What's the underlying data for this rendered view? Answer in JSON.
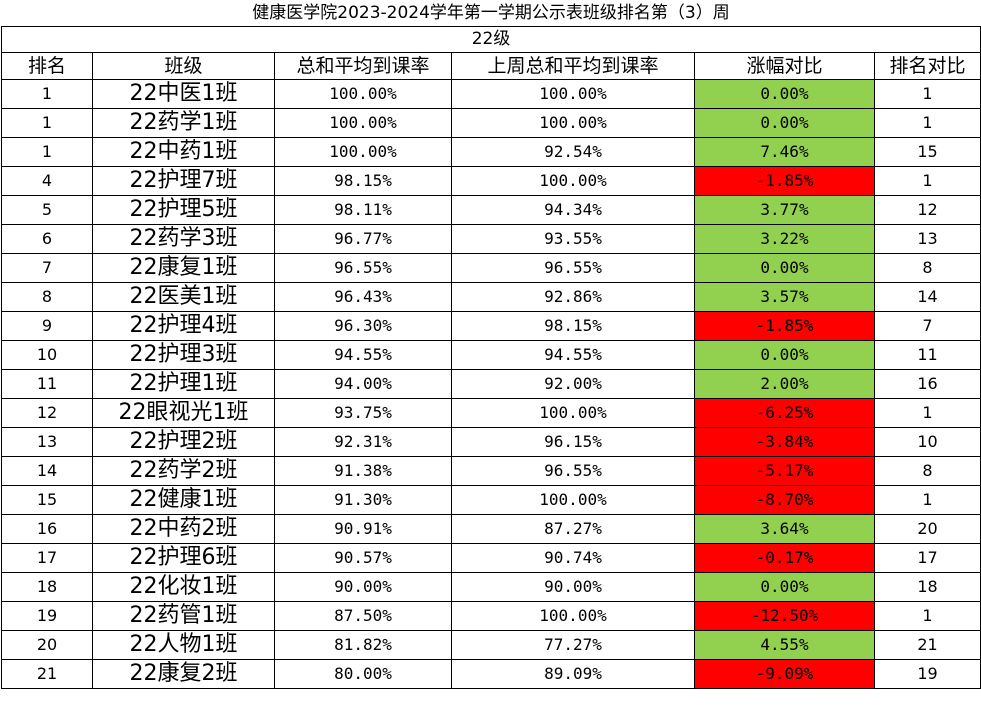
{
  "title": "健康医学院2023-2024学年第一学期公示表班级排名第（3）周",
  "grade": "22级",
  "headers": [
    "排名",
    "班级",
    "总和平均到课率",
    "上周总和平均到课率",
    "涨幅对比",
    "排名对比"
  ],
  "colors": {
    "increase": "#92d050",
    "decrease": "#ff0000"
  },
  "rows": [
    {
      "rank": "1",
      "class": "22中医1班",
      "rate": "100.00%",
      "last": "100.00%",
      "change": "0.00%",
      "trend": "up",
      "prev_rank": "1"
    },
    {
      "rank": "1",
      "class": "22药学1班",
      "rate": "100.00%",
      "last": "100.00%",
      "change": "0.00%",
      "trend": "up",
      "prev_rank": "1"
    },
    {
      "rank": "1",
      "class": "22中药1班",
      "rate": "100.00%",
      "last": "92.54%",
      "change": "7.46%",
      "trend": "up",
      "prev_rank": "15"
    },
    {
      "rank": "4",
      "class": "22护理7班",
      "rate": "98.15%",
      "last": "100.00%",
      "change": "-1.85%",
      "trend": "down",
      "prev_rank": "1"
    },
    {
      "rank": "5",
      "class": "22护理5班",
      "rate": "98.11%",
      "last": "94.34%",
      "change": "3.77%",
      "trend": "up",
      "prev_rank": "12"
    },
    {
      "rank": "6",
      "class": "22药学3班",
      "rate": "96.77%",
      "last": "93.55%",
      "change": "3.22%",
      "trend": "up",
      "prev_rank": "13"
    },
    {
      "rank": "7",
      "class": "22康复1班",
      "rate": "96.55%",
      "last": "96.55%",
      "change": "0.00%",
      "trend": "up",
      "prev_rank": "8"
    },
    {
      "rank": "8",
      "class": "22医美1班",
      "rate": "96.43%",
      "last": "92.86%",
      "change": "3.57%",
      "trend": "up",
      "prev_rank": "14"
    },
    {
      "rank": "9",
      "class": "22护理4班",
      "rate": "96.30%",
      "last": "98.15%",
      "change": "-1.85%",
      "trend": "down",
      "prev_rank": "7"
    },
    {
      "rank": "10",
      "class": "22护理3班",
      "rate": "94.55%",
      "last": "94.55%",
      "change": "0.00%",
      "trend": "up",
      "prev_rank": "11"
    },
    {
      "rank": "11",
      "class": "22护理1班",
      "rate": "94.00%",
      "last": "92.00%",
      "change": "2.00%",
      "trend": "up",
      "prev_rank": "16"
    },
    {
      "rank": "12",
      "class": "22眼视光1班",
      "rate": "93.75%",
      "last": "100.00%",
      "change": "-6.25%",
      "trend": "down",
      "prev_rank": "1"
    },
    {
      "rank": "13",
      "class": "22护理2班",
      "rate": "92.31%",
      "last": "96.15%",
      "change": "-3.84%",
      "trend": "down",
      "prev_rank": "10"
    },
    {
      "rank": "14",
      "class": "22药学2班",
      "rate": "91.38%",
      "last": "96.55%",
      "change": "-5.17%",
      "trend": "down",
      "prev_rank": "8"
    },
    {
      "rank": "15",
      "class": "22健康1班",
      "rate": "91.30%",
      "last": "100.00%",
      "change": "-8.70%",
      "trend": "down",
      "prev_rank": "1"
    },
    {
      "rank": "16",
      "class": "22中药2班",
      "rate": "90.91%",
      "last": "87.27%",
      "change": "3.64%",
      "trend": "up",
      "prev_rank": "20"
    },
    {
      "rank": "17",
      "class": "22护理6班",
      "rate": "90.57%",
      "last": "90.74%",
      "change": "-0.17%",
      "trend": "down",
      "prev_rank": "17"
    },
    {
      "rank": "18",
      "class": "22化妆1班",
      "rate": "90.00%",
      "last": "90.00%",
      "change": "0.00%",
      "trend": "up",
      "prev_rank": "18"
    },
    {
      "rank": "19",
      "class": "22药管1班",
      "rate": "87.50%",
      "last": "100.00%",
      "change": "-12.50%",
      "trend": "down",
      "prev_rank": "1"
    },
    {
      "rank": "20",
      "class": "22人物1班",
      "rate": "81.82%",
      "last": "77.27%",
      "change": "4.55%",
      "trend": "up",
      "prev_rank": "21"
    },
    {
      "rank": "21",
      "class": "22康复2班",
      "rate": "80.00%",
      "last": "89.09%",
      "change": "-9.09%",
      "trend": "down",
      "prev_rank": "19"
    }
  ]
}
